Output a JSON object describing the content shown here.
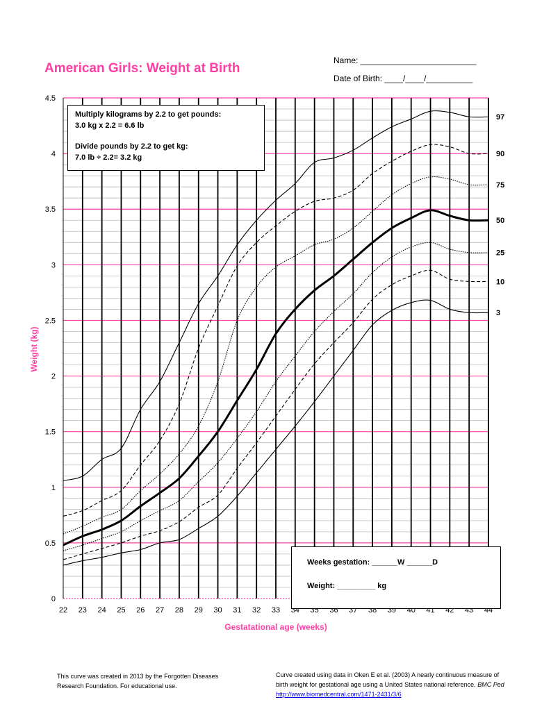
{
  "header": {
    "title": "American Girls: Weight at Birth",
    "name_line": "Name: _________________________",
    "dob_line": "Date of Birth: ____/____/__________"
  },
  "info_box": {
    "line1": "Multiply kilograms by 2.2 to get pounds:",
    "line2": "3.0 kg  x 2.2 = 6.6 lb",
    "line3": "Divide pounds by 2.2 to get kg:",
    "line4": "7.0  lb ÷ 2.2= 3.2 kg"
  },
  "entry_box": {
    "weeks": "Weeks gestation:  ______W ______D",
    "weight": "Weight:  _________ kg"
  },
  "footer": {
    "left_line1": "This curve was created in 2013 by the Forgotten Diseases",
    "left_line2": "Research Foundation. For educational use.",
    "right_line1": "Curve created using data in Oken E et al. (2003) A nearly continuous measure of",
    "right_line2": "birth weight for gestational age using a United States national reference.",
    "right_journal": "BMC Ped",
    "right_link": "http://www.biomedcentral.com/1471-2431/3/6"
  },
  "colors": {
    "accent": "#ff3fa5",
    "grid": "#000000",
    "minor_grid": "#bbbbbb"
  },
  "chart_data": {
    "type": "line",
    "title": "American Girls: Weight at Birth",
    "xlabel": "Gestatational age (weeks)",
    "ylabel": "Weight (kg)",
    "xlim": [
      22,
      44
    ],
    "ylim": [
      0,
      4.5
    ],
    "x_ticks": [
      22,
      23,
      24,
      25,
      26,
      27,
      28,
      29,
      30,
      31,
      32,
      33,
      34,
      35,
      36,
      37,
      38,
      39,
      40,
      41,
      42,
      43,
      44
    ],
    "y_ticks": [
      0,
      0.5,
      1,
      1.5,
      2,
      2.5,
      3,
      3.5,
      4,
      4.5
    ],
    "y_tick_labels": [
      "0",
      "0.5",
      "1",
      "1.5",
      "2",
      "2.5",
      "3",
      "3.5",
      "4",
      "4.5"
    ],
    "grid": true,
    "x": [
      22,
      23,
      24,
      25,
      26,
      27,
      28,
      29,
      30,
      31,
      32,
      33,
      34,
      35,
      36,
      37,
      38,
      39,
      40,
      41,
      42,
      43,
      44
    ],
    "series": [
      {
        "name": "97",
        "style": "solid-thin",
        "values": [
          1.06,
          1.1,
          1.25,
          1.35,
          1.7,
          1.95,
          2.3,
          2.65,
          2.9,
          3.18,
          3.4,
          3.58,
          3.73,
          3.92,
          3.96,
          4.03,
          4.14,
          4.24,
          4.31,
          4.38,
          4.37,
          4.33,
          4.33
        ]
      },
      {
        "name": "90",
        "style": "dashed",
        "values": [
          0.74,
          0.79,
          0.88,
          0.97,
          1.2,
          1.42,
          1.75,
          2.25,
          2.63,
          2.99,
          3.2,
          3.35,
          3.48,
          3.57,
          3.6,
          3.67,
          3.82,
          3.93,
          4.02,
          4.08,
          4.06,
          4.0,
          4.0
        ]
      },
      {
        "name": "75",
        "style": "dotted",
        "values": [
          0.58,
          0.65,
          0.73,
          0.8,
          0.97,
          1.12,
          1.3,
          1.55,
          1.95,
          2.5,
          2.8,
          2.98,
          3.08,
          3.18,
          3.23,
          3.33,
          3.48,
          3.63,
          3.73,
          3.79,
          3.77,
          3.72,
          3.72
        ]
      },
      {
        "name": "50",
        "style": "bold",
        "values": [
          0.48,
          0.56,
          0.62,
          0.7,
          0.83,
          0.95,
          1.08,
          1.28,
          1.5,
          1.78,
          2.06,
          2.38,
          2.6,
          2.77,
          2.9,
          3.05,
          3.2,
          3.33,
          3.42,
          3.49,
          3.44,
          3.4,
          3.4
        ]
      },
      {
        "name": "25",
        "style": "dotted",
        "values": [
          0.43,
          0.48,
          0.54,
          0.6,
          0.7,
          0.79,
          0.88,
          1.05,
          1.22,
          1.44,
          1.68,
          1.95,
          2.18,
          2.4,
          2.58,
          2.74,
          2.93,
          3.07,
          3.16,
          3.2,
          3.14,
          3.11,
          3.11
        ]
      },
      {
        "name": "10",
        "style": "dashed",
        "values": [
          0.35,
          0.4,
          0.45,
          0.5,
          0.56,
          0.61,
          0.69,
          0.82,
          0.93,
          1.17,
          1.4,
          1.64,
          1.88,
          2.11,
          2.3,
          2.48,
          2.69,
          2.82,
          2.9,
          2.95,
          2.87,
          2.85,
          2.85
        ]
      },
      {
        "name": "3",
        "style": "solid-thin",
        "values": [
          0.3,
          0.34,
          0.37,
          0.41,
          0.44,
          0.5,
          0.53,
          0.63,
          0.74,
          0.92,
          1.13,
          1.34,
          1.55,
          1.77,
          2.0,
          2.23,
          2.46,
          2.59,
          2.66,
          2.68,
          2.6,
          2.57,
          2.57
        ]
      }
    ]
  }
}
